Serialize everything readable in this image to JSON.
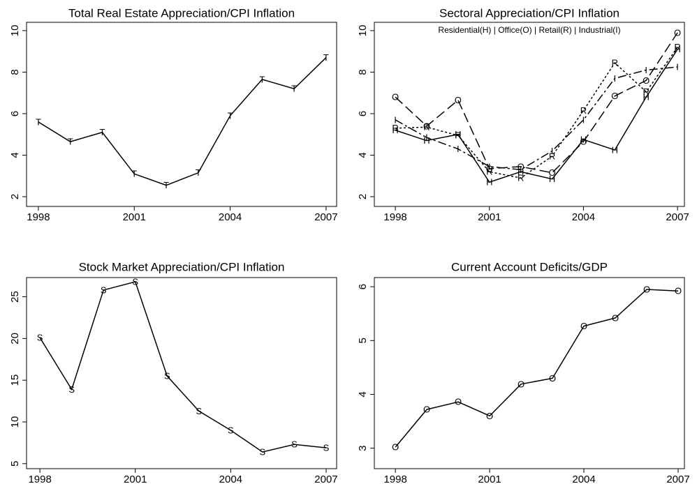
{
  "chart_data": [
    {
      "type": "line",
      "title": "Total Real Estate Appreciation/CPI Inflation",
      "x": [
        1998,
        1999,
        2000,
        2001,
        2002,
        2003,
        2004,
        2005,
        2006,
        2007
      ],
      "series": [
        {
          "marker": "T",
          "color": "#000000",
          "line_style": "solid",
          "values": [
            5.6,
            4.65,
            5.1,
            3.1,
            2.55,
            3.15,
            5.9,
            7.65,
            7.2,
            8.7
          ]
        }
      ],
      "xlim": [
        1997.63,
        2007.33
      ],
      "xticks": [
        1998,
        2001,
        2004,
        2007
      ],
      "ylim": [
        1.53,
        10.4
      ],
      "yticks": [
        2,
        4,
        6,
        8,
        10
      ]
    },
    {
      "type": "line",
      "title": "Sectoral Appreciation/CPI Inflation",
      "subtitle": "Residential(H) | Office(O) | Retail(R) | Industrial(I)",
      "x": [
        1998,
        1999,
        2000,
        2001,
        2002,
        2003,
        2004,
        2005,
        2006,
        2007
      ],
      "series": [
        {
          "marker": "H",
          "color": "#000000",
          "line_style": "solid",
          "values": [
            5.2,
            4.7,
            5.0,
            2.7,
            3.2,
            2.85,
            4.75,
            4.25,
            6.8,
            9.1
          ]
        },
        {
          "marker": "O",
          "color": "#000000",
          "line_style": "longdash",
          "values": [
            6.8,
            5.4,
            6.65,
            3.35,
            3.45,
            3.15,
            4.65,
            6.85,
            7.6,
            9.9
          ]
        },
        {
          "marker": "R",
          "color": "#000000",
          "line_style": "shortdash",
          "values": [
            5.3,
            5.35,
            4.95,
            3.2,
            2.9,
            3.95,
            6.15,
            8.45,
            7.05,
            9.2
          ]
        },
        {
          "marker": "I",
          "color": "#000000",
          "line_style": "dashdot",
          "values": [
            5.7,
            4.85,
            4.3,
            3.45,
            3.3,
            4.2,
            5.7,
            7.7,
            8.1,
            8.25
          ]
        }
      ],
      "xlim": [
        1997.33,
        2007.22
      ],
      "xticks": [
        1998,
        2001,
        2004,
        2007
      ],
      "ylim": [
        1.53,
        10.4
      ],
      "yticks": [
        2,
        4,
        6,
        8,
        10
      ]
    },
    {
      "type": "line",
      "title": "Stock Market Appreciation/CPI Inflation",
      "x": [
        1998,
        1999,
        2000,
        2001,
        2002,
        2003,
        2004,
        2005,
        2006,
        2007
      ],
      "series": [
        {
          "marker": "S",
          "color": "#000000",
          "line_style": "solid",
          "values": [
            20.1,
            13.9,
            25.8,
            26.8,
            15.5,
            11.3,
            9.0,
            6.4,
            7.3,
            6.9
          ]
        }
      ],
      "xlim": [
        1997.58,
        2007.33
      ],
      "xticks": [
        1998,
        2001,
        2004,
        2007
      ],
      "ylim": [
        4.4,
        27.3
      ],
      "yticks": [
        5,
        10,
        15,
        20,
        25
      ]
    },
    {
      "type": "line",
      "title": "Current Account Deficits/GDP",
      "x": [
        1998,
        1999,
        2000,
        2001,
        2002,
        2003,
        2004,
        2005,
        2006,
        2007
      ],
      "series": [
        {
          "marker": "O",
          "color": "#000000",
          "line_style": "solid",
          "values": [
            3.02,
            3.72,
            3.86,
            3.6,
            4.19,
            4.3,
            5.27,
            5.42,
            5.95,
            5.92
          ]
        }
      ],
      "xlim": [
        1997.33,
        2007.2
      ],
      "xticks": [
        1998,
        2001,
        2004,
        2007
      ],
      "ylim": [
        2.62,
        6.17
      ],
      "yticks": [
        3,
        4,
        5,
        6
      ]
    }
  ]
}
